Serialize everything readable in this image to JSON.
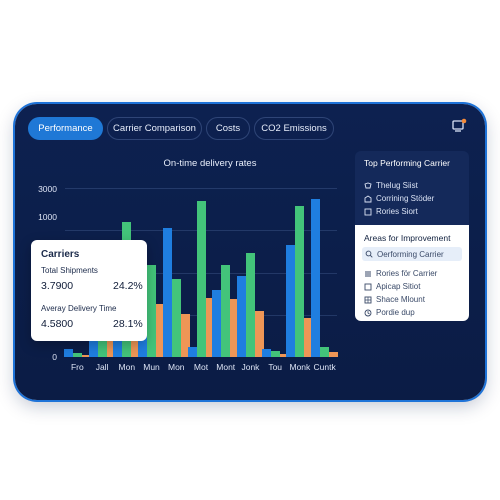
{
  "tabs": [
    {
      "label": "Performance",
      "active": true
    },
    {
      "label": "Carrier Comparison",
      "active": false
    },
    {
      "label": "Costs",
      "active": false
    },
    {
      "label": "CO2 Emissions",
      "active": false
    }
  ],
  "header_icon": "export-icon",
  "chart": {
    "title": "On-time delivery rates",
    "yticks": [
      "3000",
      "1000",
      "0"
    ],
    "xticks": [
      "Fro",
      "Jall",
      "Mon",
      "Mun",
      "Mon",
      "Mot",
      "Mont",
      "Jonk",
      "Tou",
      "Monk",
      "Cuntk"
    ]
  },
  "chart_data": {
    "type": "bar",
    "title": "On-time delivery rates",
    "categories": [
      "Fro",
      "Jall",
      "Mon",
      "Mun",
      "Mon",
      "Mot",
      "Mont",
      "Jonk",
      "Tou",
      "Monk",
      "Cuntk"
    ],
    "series": [
      {
        "values": [
          120,
          380,
          690,
          1360,
          1990,
          160,
          1030,
          1250,
          130,
          1720,
          2430
        ]
      },
      {
        "values": [
          60,
          1010,
          2080,
          1420,
          1200,
          2400,
          1410,
          1600,
          90,
          2330,
          150
        ]
      },
      {
        "values": [
          30,
          510,
          980,
          820,
          660,
          910,
          890,
          710,
          50,
          600,
          70
        ]
      }
    ],
    "ylim": [
      0,
      2600
    ],
    "colors": {
      "blue": "#1f7ee0",
      "green": "#43c47a",
      "orange": "#ef9656"
    }
  },
  "carriers_card": {
    "title": "Carriers",
    "shipments_label": "Total Shipments",
    "shipments_value": "3.7900",
    "shipments_pct": "24.2%",
    "delivery_label": "Averay Delivery Time",
    "delivery_value": "4.5800",
    "delivery_pct": "28.1%"
  },
  "top_carrier": {
    "title": "Top Performing Carrier",
    "items": [
      "Thelug Siist",
      "Corrining Stöder",
      "Rories Siort"
    ]
  },
  "improvement": {
    "title": "Areas for Improvement",
    "highlight": "Oerforming Carrier",
    "items": [
      "Rories för Carrier",
      "Apicap Sitiot",
      "Shace Mlount",
      "Pordie dup"
    ]
  }
}
